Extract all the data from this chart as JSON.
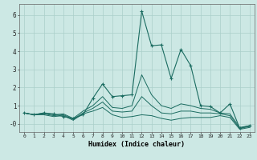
{
  "xlabel": "Humidex (Indice chaleur)",
  "bg_color": "#cce8e4",
  "grid_color": "#aacfca",
  "line_color": "#1a6b60",
  "x_ticks": [
    0,
    1,
    2,
    3,
    4,
    5,
    6,
    7,
    8,
    9,
    10,
    11,
    12,
    13,
    14,
    15,
    16,
    17,
    18,
    19,
    20,
    21,
    22,
    23
  ],
  "ylim": [
    -0.45,
    6.6
  ],
  "xlim": [
    -0.5,
    23.5
  ],
  "series": [
    [
      0.6,
      0.5,
      0.6,
      0.55,
      0.4,
      0.3,
      0.5,
      1.4,
      2.2,
      1.5,
      1.55,
      1.6,
      6.2,
      4.3,
      4.35,
      2.5,
      4.1,
      3.2,
      1.0,
      0.95,
      0.6,
      1.1,
      -0.25,
      -0.1
    ],
    [
      0.6,
      0.5,
      0.6,
      0.5,
      0.55,
      0.3,
      0.7,
      1.0,
      1.5,
      0.9,
      0.85,
      1.0,
      2.7,
      1.6,
      1.0,
      0.85,
      1.1,
      1.0,
      0.85,
      0.8,
      0.6,
      0.55,
      -0.2,
      -0.1
    ],
    [
      0.6,
      0.5,
      0.55,
      0.45,
      0.5,
      0.25,
      0.6,
      0.85,
      1.2,
      0.7,
      0.65,
      0.7,
      1.5,
      1.0,
      0.6,
      0.55,
      0.7,
      0.7,
      0.6,
      0.6,
      0.55,
      0.45,
      -0.25,
      -0.15
    ],
    [
      0.6,
      0.5,
      0.5,
      0.4,
      0.45,
      0.2,
      0.55,
      0.7,
      0.9,
      0.5,
      0.35,
      0.4,
      0.5,
      0.45,
      0.3,
      0.2,
      0.3,
      0.35,
      0.35,
      0.35,
      0.45,
      0.35,
      -0.3,
      -0.2
    ]
  ]
}
